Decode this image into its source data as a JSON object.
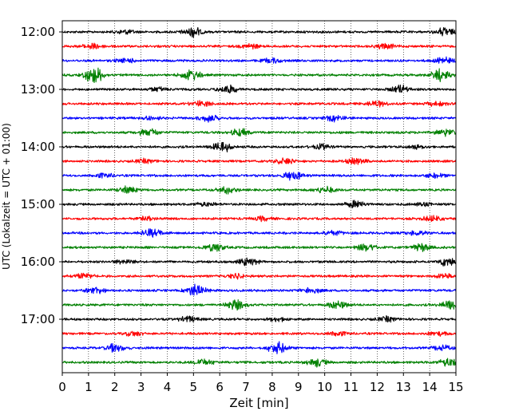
{
  "chart_data": {
    "type": "line",
    "title": "",
    "xlabel": "Zeit  [min]",
    "ylabel": "UTC (Lokalzeit = UTC + 01:00)",
    "xlim": [
      0,
      15
    ],
    "x_ticks": [
      "0",
      "1",
      "2",
      "3",
      "4",
      "5",
      "6",
      "7",
      "8",
      "9",
      "10",
      "11",
      "12",
      "13",
      "14",
      "15"
    ],
    "grid": "vertical dotted lines at each minute",
    "trace_interval_min": 15,
    "start_time": "12:00",
    "hour_labels": [
      "12:00",
      "13:00",
      "14:00",
      "15:00",
      "16:00",
      "17:00"
    ],
    "trace_colors": [
      "#000000",
      "#ff0000",
      "#0000ff",
      "#008000"
    ],
    "traces": [
      {
        "start": "12:00",
        "color": "#000000",
        "bursts": [
          [
            5.0,
            1.4
          ],
          [
            14.6,
            1.2
          ],
          [
            2.4,
            0.6
          ]
        ]
      },
      {
        "start": "12:15",
        "color": "#ff0000",
        "bursts": [
          [
            1.1,
            0.8
          ],
          [
            7.2,
            0.6
          ],
          [
            12.3,
            0.7
          ]
        ]
      },
      {
        "start": "12:30",
        "color": "#0000ff",
        "bursts": [
          [
            2.4,
            0.6
          ],
          [
            8.0,
            0.7
          ],
          [
            14.5,
            1.0
          ]
        ]
      },
      {
        "start": "12:45",
        "color": "#008000",
        "bursts": [
          [
            1.2,
            2.4
          ],
          [
            4.9,
            1.5
          ],
          [
            14.4,
            1.6
          ]
        ]
      },
      {
        "start": "13:00",
        "color": "#000000",
        "bursts": [
          [
            6.3,
            1.2
          ],
          [
            12.9,
            1.1
          ],
          [
            3.6,
            0.6
          ]
        ]
      },
      {
        "start": "13:15",
        "color": "#ff0000",
        "bursts": [
          [
            5.3,
            0.8
          ],
          [
            12.0,
            0.8
          ],
          [
            14.3,
            0.7
          ]
        ]
      },
      {
        "start": "13:30",
        "color": "#0000ff",
        "bursts": [
          [
            5.6,
            1.0
          ],
          [
            10.4,
            0.8
          ],
          [
            3.4,
            0.6
          ]
        ]
      },
      {
        "start": "13:45",
        "color": "#008000",
        "bursts": [
          [
            3.3,
            1.1
          ],
          [
            6.8,
            1.0
          ],
          [
            14.6,
            1.0
          ]
        ]
      },
      {
        "start": "14:00",
        "color": "#000000",
        "bursts": [
          [
            6.1,
            1.5
          ],
          [
            9.9,
            0.7
          ],
          [
            13.6,
            0.6
          ]
        ]
      },
      {
        "start": "14:15",
        "color": "#ff0000",
        "bursts": [
          [
            8.5,
            0.9
          ],
          [
            11.2,
            0.8
          ],
          [
            3.2,
            0.6
          ]
        ]
      },
      {
        "start": "14:30",
        "color": "#0000ff",
        "bursts": [
          [
            8.8,
            1.3
          ],
          [
            1.6,
            0.6
          ],
          [
            14.2,
            0.6
          ]
        ]
      },
      {
        "start": "14:45",
        "color": "#008000",
        "bursts": [
          [
            2.5,
            1.0
          ],
          [
            6.3,
            0.9
          ],
          [
            10.0,
            0.9
          ]
        ]
      },
      {
        "start": "15:00",
        "color": "#000000",
        "bursts": [
          [
            11.2,
            1.0
          ],
          [
            5.5,
            0.6
          ],
          [
            13.8,
            0.5
          ]
        ]
      },
      {
        "start": "15:15",
        "color": "#ff0000",
        "bursts": [
          [
            3.2,
            0.6
          ],
          [
            7.6,
            0.6
          ],
          [
            14.1,
            0.7
          ]
        ]
      },
      {
        "start": "15:30",
        "color": "#0000ff",
        "bursts": [
          [
            3.4,
            1.1
          ],
          [
            10.3,
            0.6
          ],
          [
            13.5,
            0.6
          ]
        ]
      },
      {
        "start": "15:45",
        "color": "#008000",
        "bursts": [
          [
            5.8,
            1.0
          ],
          [
            11.6,
            0.9
          ],
          [
            13.7,
            1.0
          ]
        ]
      },
      {
        "start": "16:00",
        "color": "#000000",
        "bursts": [
          [
            7.1,
            1.0
          ],
          [
            14.7,
            1.4
          ],
          [
            2.4,
            0.6
          ]
        ]
      },
      {
        "start": "16:15",
        "color": "#ff0000",
        "bursts": [
          [
            0.8,
            0.7
          ],
          [
            6.6,
            0.7
          ],
          [
            14.6,
            0.6
          ]
        ]
      },
      {
        "start": "16:30",
        "color": "#0000ff",
        "bursts": [
          [
            5.1,
            1.6
          ],
          [
            1.3,
            0.9
          ],
          [
            9.5,
            0.8
          ]
        ]
      },
      {
        "start": "16:45",
        "color": "#008000",
        "bursts": [
          [
            6.6,
            1.3
          ],
          [
            10.5,
            1.1
          ],
          [
            14.8,
            1.4
          ]
        ]
      },
      {
        "start": "17:00",
        "color": "#000000",
        "bursts": [
          [
            4.8,
            0.8
          ],
          [
            12.4,
            0.7
          ],
          [
            8.2,
            0.5
          ]
        ]
      },
      {
        "start": "17:15",
        "color": "#ff0000",
        "bursts": [
          [
            2.7,
            0.6
          ],
          [
            10.5,
            0.6
          ],
          [
            14.3,
            0.6
          ]
        ]
      },
      {
        "start": "17:30",
        "color": "#0000ff",
        "bursts": [
          [
            8.2,
            1.6
          ],
          [
            2.0,
            1.1
          ],
          [
            14.5,
            0.7
          ]
        ]
      },
      {
        "start": "17:45",
        "color": "#008000",
        "bursts": [
          [
            14.8,
            1.5
          ],
          [
            9.7,
            1.2
          ],
          [
            5.4,
            0.9
          ]
        ]
      }
    ]
  }
}
